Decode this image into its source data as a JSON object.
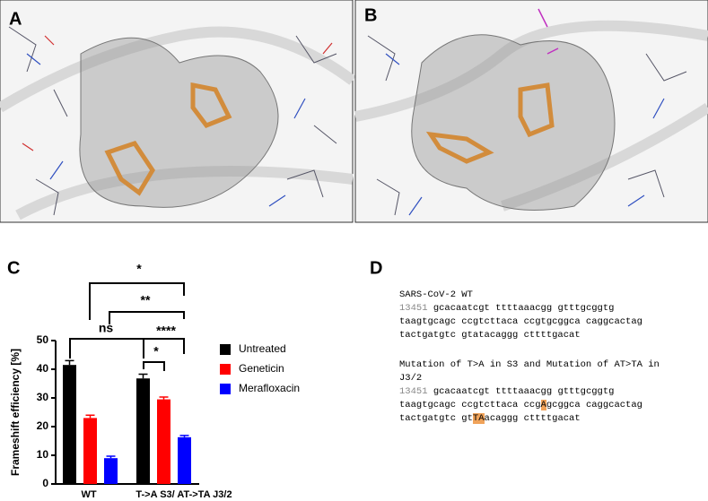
{
  "panel_labels": [
    "A",
    "B",
    "C",
    "D"
  ],
  "chart_data": {
    "type": "bar",
    "ylabel": "Frameshift efficiency [%]",
    "categories": [
      "WT",
      "T->A S3/ AT->TA J3/2"
    ],
    "series": [
      {
        "name": "Untreated",
        "color": "#000000",
        "values": [
          41.5,
          36.8
        ],
        "errors": [
          1.5,
          1.5
        ]
      },
      {
        "name": "Geneticin",
        "color": "#ff0000",
        "values": [
          23,
          29.5
        ],
        "errors": [
          1,
          0.8
        ]
      },
      {
        "name": "Merafloxacin",
        "color": "#0000ff",
        "values": [
          9,
          16.3
        ],
        "errors": [
          0.7,
          0.6
        ]
      }
    ],
    "ylim": [
      0,
      50
    ],
    "yticks": [
      0,
      10,
      20,
      30,
      40,
      50
    ],
    "annotations": [
      "*",
      "**",
      "ns",
      "****",
      "*"
    ]
  },
  "sequences": [
    {
      "title": "SARS-CoV-2 WT",
      "start": "13451",
      "lines": [
        [
          {
            "text": "gcacaatcgt ttttaaacgg gtttgcggtg"
          }
        ],
        [
          {
            "text": "taagtgcagc ccgtcttaca ccgtgcggca caggcactag"
          }
        ],
        [
          {
            "text": "tactgatgtc gtatacaggg cttttgacat"
          }
        ]
      ]
    },
    {
      "title": "Mutation of T>A in S3 and Mutation of AT>TA in J3/2",
      "start": "13451",
      "lines": [
        [
          {
            "text": "gcacaatcgt ttttaaacgg gtttgcggtg"
          }
        ],
        [
          {
            "text": "taagtgcagc ccgtcttaca ccg"
          },
          {
            "text": "A",
            "highlight": true
          },
          {
            "text": "gcggca caggcactag"
          }
        ],
        [
          {
            "text": "tactgatgtc gt"
          },
          {
            "text": "TA",
            "highlight": true
          },
          {
            "text": "acaggg cttttgacat"
          }
        ]
      ]
    }
  ]
}
